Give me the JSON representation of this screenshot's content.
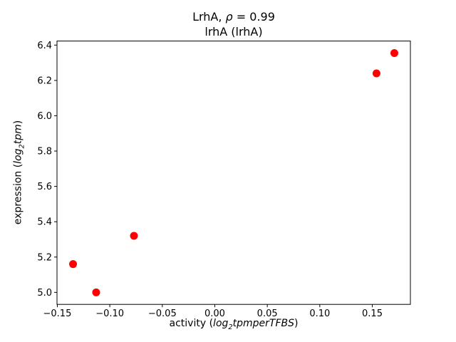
{
  "title": {
    "line1_prefix": "LrhA, ",
    "rho": "ρ",
    "line1_suffix": " = 0.99",
    "line2": "lrhA (lrhA)"
  },
  "xlabel": {
    "prefix": "activity (",
    "log": "log",
    "sub": "2",
    "rest": "tpmperTFBS",
    "suffix": ")"
  },
  "ylabel": {
    "prefix": "expression (",
    "log": "log",
    "sub": "2",
    "rest": "tpm",
    "suffix": ")"
  },
  "chart_data": {
    "type": "scatter",
    "title": "LrhA, ρ = 0.99\nlrhA (lrhA)",
    "xlabel": "activity (log2tpm per TFBS)",
    "ylabel": "expression (log2tpm)",
    "legend": "none",
    "grid": false,
    "marker_color": "#ff0000",
    "marker_radius": 5.5,
    "x": [
      -0.135,
      -0.113,
      -0.077,
      0.154,
      0.171
    ],
    "y": [
      5.16,
      5.0,
      5.32,
      6.24,
      6.355
    ],
    "xlim": [
      -0.1503,
      0.1863
    ],
    "ylim": [
      4.932,
      6.423
    ],
    "xticks": [
      {
        "v": -0.15,
        "label": "−0.15"
      },
      {
        "v": -0.1,
        "label": "−0.10"
      },
      {
        "v": -0.05,
        "label": "−0.05"
      },
      {
        "v": 0.0,
        "label": "0.00"
      },
      {
        "v": 0.05,
        "label": "0.05"
      },
      {
        "v": 0.1,
        "label": "0.10"
      },
      {
        "v": 0.15,
        "label": "0.15"
      }
    ],
    "yticks": [
      {
        "v": 5.0,
        "label": "5.0"
      },
      {
        "v": 5.2,
        "label": "5.2"
      },
      {
        "v": 5.4,
        "label": "5.4"
      },
      {
        "v": 5.6,
        "label": "5.6"
      },
      {
        "v": 5.8,
        "label": "5.8"
      },
      {
        "v": 6.0,
        "label": "6.0"
      },
      {
        "v": 6.2,
        "label": "6.2"
      },
      {
        "v": 6.4,
        "label": "6.4"
      }
    ]
  }
}
